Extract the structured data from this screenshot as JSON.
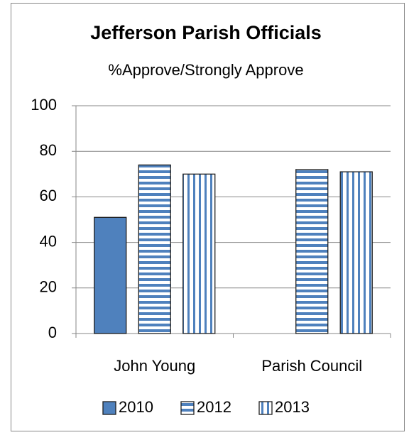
{
  "chart_data": {
    "type": "bar",
    "title": "Jefferson Parish Officials",
    "subtitle": "%Approve/Strongly Approve",
    "categories": [
      "John Young",
      "Parish Council"
    ],
    "series": [
      {
        "name": "2010",
        "color": "#4f81bd",
        "pattern": "solid",
        "values": [
          51,
          null
        ]
      },
      {
        "name": "2012",
        "color": "#4f81bd",
        "pattern": "horizontal",
        "values": [
          74,
          72
        ]
      },
      {
        "name": "2013",
        "color": "#4f81bd",
        "pattern": "vertical",
        "values": [
          70,
          71
        ]
      }
    ],
    "ylim": [
      0,
      100
    ],
    "yticks": [
      0,
      20,
      40,
      60,
      80,
      100
    ],
    "grid": true,
    "legend": "bottom"
  }
}
